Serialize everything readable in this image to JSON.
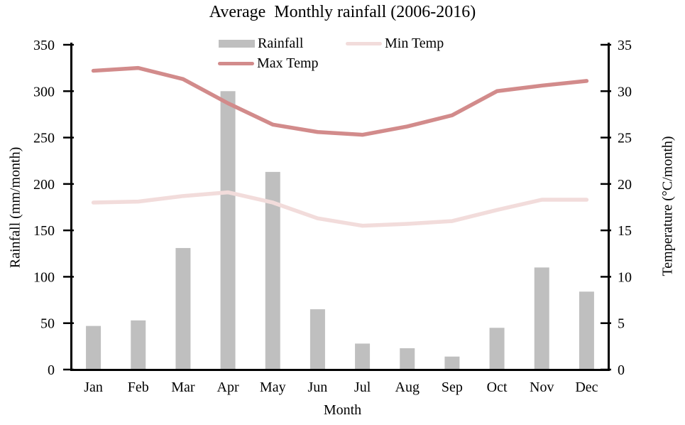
{
  "colors": {
    "bar": "#bfbfbf",
    "max_temp_line": "#d28b8b",
    "min_temp_line": "#f2dcdb",
    "axis": "#000000"
  },
  "chart_data": {
    "type": "combo-bar-line",
    "title": "Average  Monthly rainfall (2006-2016)",
    "xlabel": "Month",
    "ylabel_left": "Rainfall (mm/month)",
    "ylabel_right": "Temperature (°C/month)",
    "categories": [
      "Jan",
      "Feb",
      "Mar",
      "Apr",
      "May",
      "Jun",
      "Jul",
      "Aug",
      "Sep",
      "Oct",
      "Nov",
      "Dec"
    ],
    "series": [
      {
        "name": "Rainfall",
        "type": "bar",
        "axis": "left",
        "values": [
          47,
          53,
          131,
          300,
          213,
          65,
          28,
          23,
          14,
          45,
          110,
          84
        ]
      },
      {
        "name": "Min Temp",
        "type": "line",
        "axis": "right",
        "values": [
          18.0,
          18.1,
          18.7,
          19.1,
          18.0,
          16.3,
          15.5,
          15.7,
          16.0,
          17.2,
          18.3,
          18.3
        ]
      },
      {
        "name": "Max Temp",
        "type": "line",
        "axis": "right",
        "values": [
          32.2,
          32.5,
          31.3,
          28.7,
          26.4,
          25.6,
          25.3,
          26.2,
          27.4,
          30.0,
          30.6,
          31.1
        ]
      }
    ],
    "ylim_left": [
      0,
      350
    ],
    "ylim_right": [
      0,
      35
    ],
    "yticks_left": [
      0,
      50,
      100,
      150,
      200,
      250,
      300,
      350
    ],
    "yticks_right": [
      0,
      5,
      10,
      15,
      20,
      25,
      30,
      35
    ],
    "grid": false,
    "legend_position": "top-center"
  }
}
